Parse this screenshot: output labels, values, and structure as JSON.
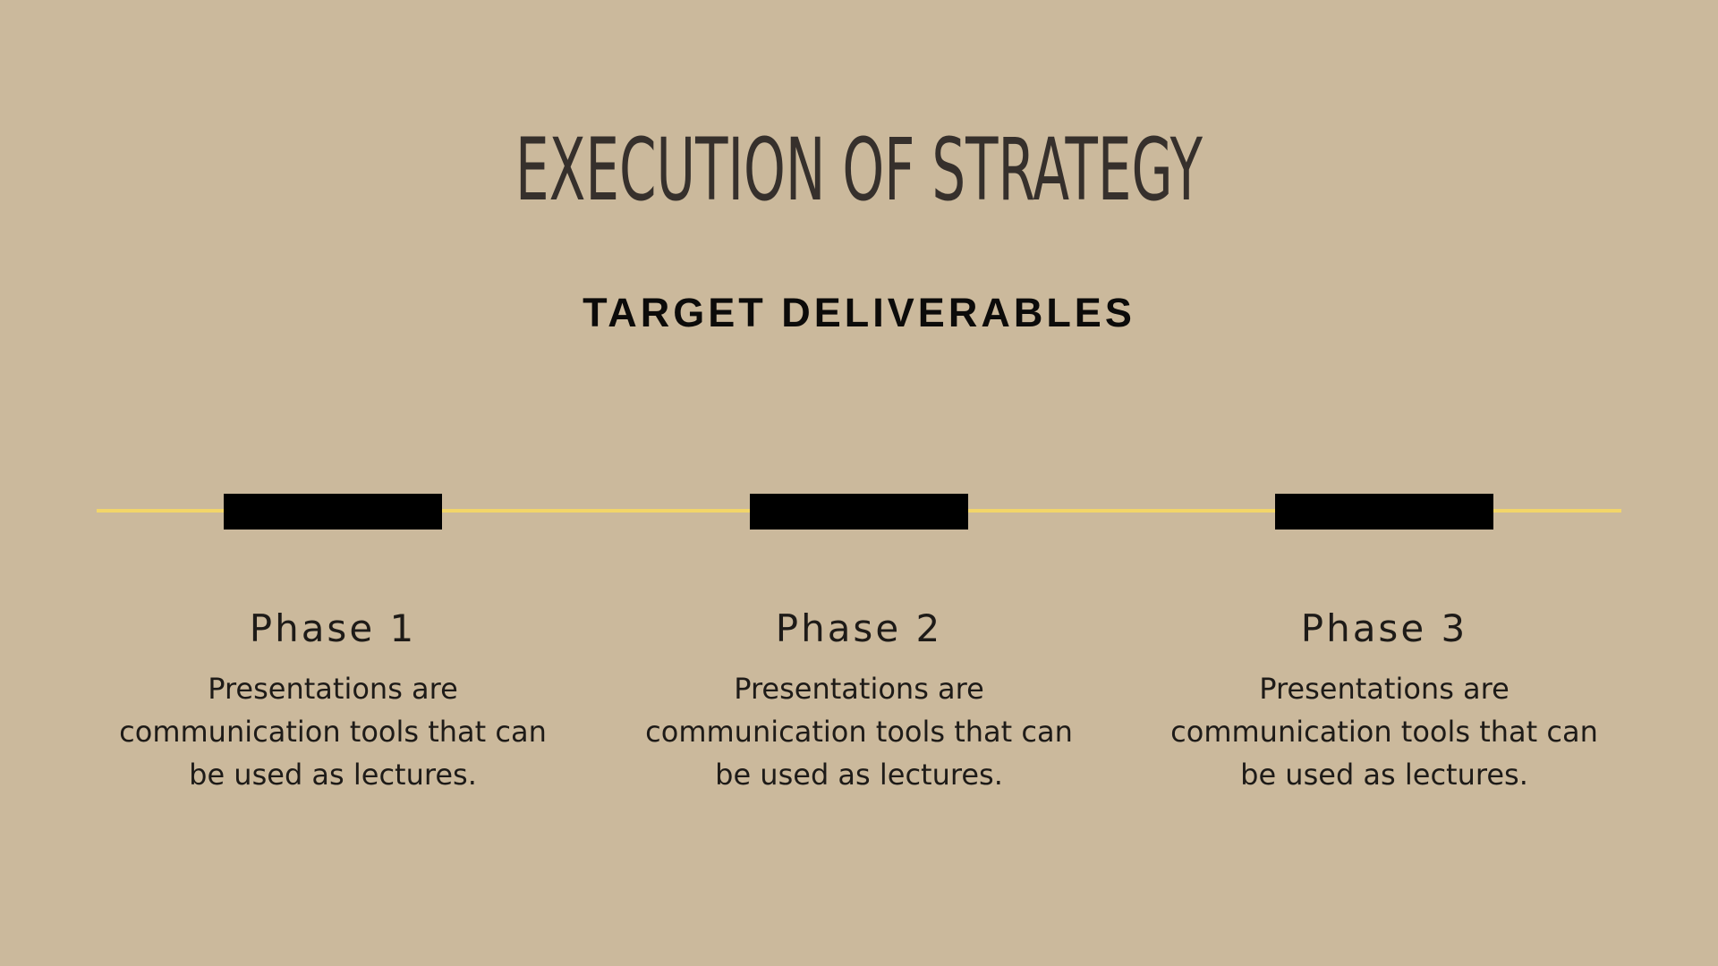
{
  "slide": {
    "title": "EXECUTION OF STRATEGY",
    "subtitle": "TARGET DELIVERABLES",
    "colors": {
      "background": "#CBB99C",
      "timeline_line": "#F2D569",
      "marker": "#000000",
      "title_text": "#36302C"
    },
    "phases": [
      {
        "title": "Phase 1",
        "description": "Presentations are communication tools that can be used as lectures."
      },
      {
        "title": "Phase 2",
        "description": "Presentations are communication tools that can be used as lectures."
      },
      {
        "title": "Phase 3",
        "description": "Presentations are communication tools that can be used as lectures."
      }
    ]
  }
}
